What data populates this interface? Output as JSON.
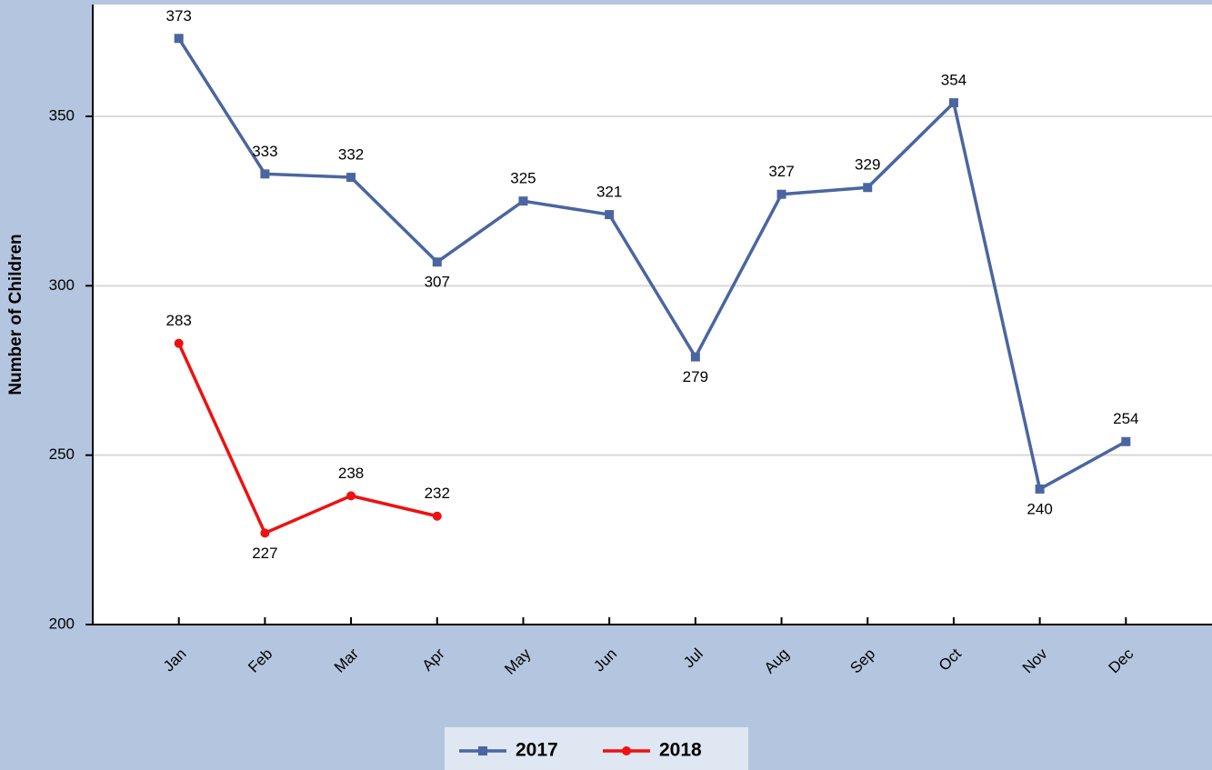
{
  "chart_data": {
    "type": "line",
    "y_label": "Number of Children",
    "categories": [
      "Jan",
      "Feb",
      "Mar",
      "Apr",
      "May",
      "Jun",
      "Jul",
      "Aug",
      "Sep",
      "Oct",
      "Nov",
      "Dec"
    ],
    "series": [
      {
        "name": "2017",
        "color": "#4a66a0",
        "marker": "square",
        "values": [
          373,
          333,
          332,
          307,
          325,
          321,
          279,
          327,
          329,
          354,
          240,
          254
        ]
      },
      {
        "name": "2018",
        "color": "#ee1111",
        "marker": "circle",
        "values": [
          283,
          227,
          238,
          232,
          null,
          null,
          null,
          null,
          null,
          null,
          null,
          null
        ]
      }
    ],
    "ylim": [
      200,
      383
    ],
    "yticks": [
      200,
      250,
      300,
      350
    ],
    "grid": true,
    "legend": "bottom"
  }
}
